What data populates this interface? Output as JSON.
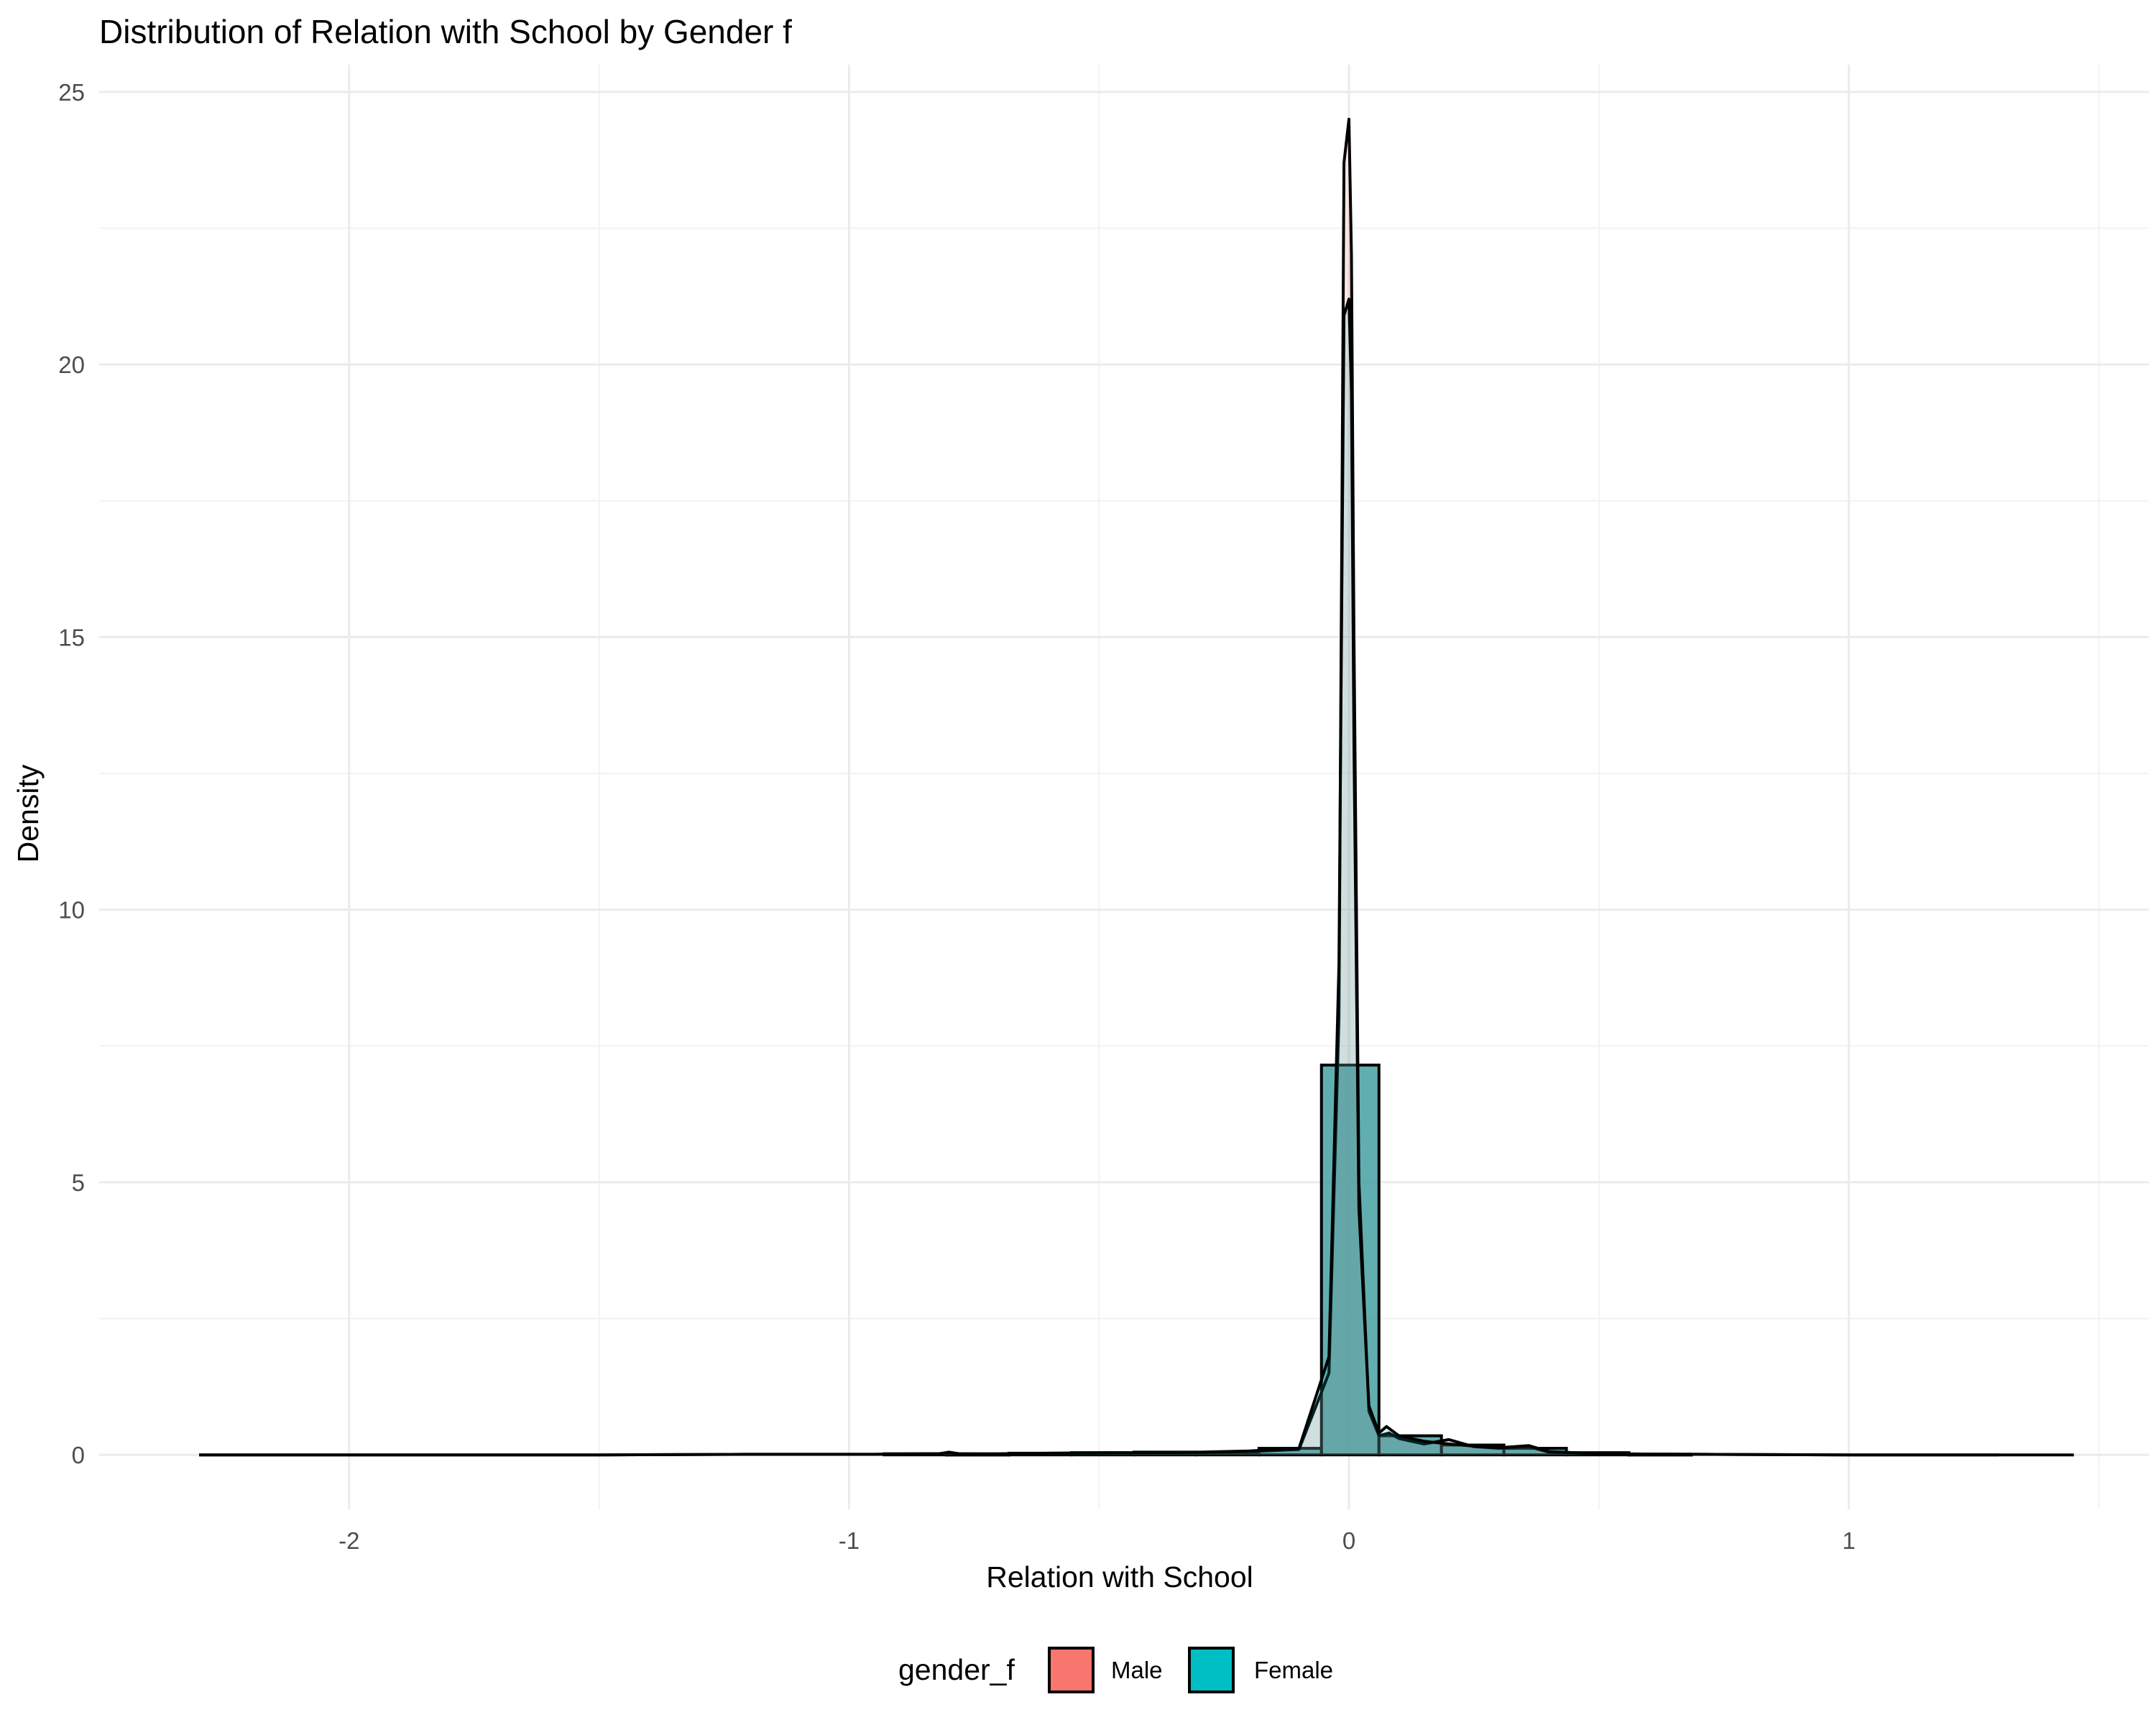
{
  "chart_data": {
    "type": "histogram+density",
    "title": "Distribution of Relation with School by Gender f",
    "xlabel": "Relation with School",
    "ylabel": "Density",
    "xlim": [
      -2.5,
      1.6
    ],
    "ylim": [
      -1,
      25.5
    ],
    "x_ticks": [
      -2,
      -1,
      0,
      1
    ],
    "y_ticks": [
      0,
      5,
      10,
      15,
      20,
      25
    ],
    "grid": true,
    "legend": {
      "title": "gender_f",
      "position": "bottom",
      "entries": [
        {
          "label": "Male",
          "color": "#F8766D"
        },
        {
          "label": "Female",
          "color": "#00BFC4"
        }
      ]
    },
    "bin_width": 0.125,
    "histogram_bins": [
      {
        "x0": -0.93,
        "x1": -0.805,
        "density": 0.02
      },
      {
        "x0": -0.805,
        "x1": -0.68,
        "density": 0.01
      },
      {
        "x0": -0.68,
        "x1": -0.555,
        "density": 0.03
      },
      {
        "x0": -0.555,
        "x1": -0.43,
        "density": 0.04
      },
      {
        "x0": -0.43,
        "x1": -0.305,
        "density": 0.05
      },
      {
        "x0": -0.305,
        "x1": -0.18,
        "density": 0.04
      },
      {
        "x0": -0.18,
        "x1": -0.055,
        "density": 0.12
      },
      {
        "x0": -0.055,
        "x1": 0.06,
        "density": 7.15
      },
      {
        "x0": 0.06,
        "x1": 0.185,
        "density": 0.35
      },
      {
        "x0": 0.185,
        "x1": 0.31,
        "density": 0.18
      },
      {
        "x0": 0.31,
        "x1": 0.435,
        "density": 0.12
      },
      {
        "x0": 0.435,
        "x1": 0.56,
        "density": 0.04
      },
      {
        "x0": 0.56,
        "x1": 0.685,
        "density": 0.01
      }
    ],
    "series": [
      {
        "name": "Male",
        "color": "#F8766D",
        "density_curve": {
          "x": [
            -2.3,
            -1.5,
            -1.2,
            -0.95,
            -0.82,
            -0.8,
            -0.78,
            -0.7,
            -0.6,
            -0.5,
            -0.4,
            -0.3,
            -0.2,
            -0.1,
            -0.04,
            -0.02,
            -0.01,
            0.0,
            0.005,
            0.01,
            0.02,
            0.04,
            0.06,
            0.08,
            0.1,
            0.15,
            0.2,
            0.25,
            0.3,
            0.36,
            0.4,
            0.5,
            0.7,
            1.0,
            1.3
          ],
          "y": [
            0.0,
            0.0,
            0.01,
            0.01,
            0.02,
            0.05,
            0.02,
            0.01,
            0.02,
            0.03,
            0.04,
            0.04,
            0.06,
            0.1,
            1.5,
            8.0,
            23.7,
            24.5,
            22.0,
            15.0,
            5.0,
            0.8,
            0.35,
            0.4,
            0.3,
            0.2,
            0.28,
            0.15,
            0.12,
            0.15,
            0.05,
            0.02,
            0.01,
            0.0,
            0.0
          ]
        }
      },
      {
        "name": "Female",
        "color": "#00BFC4",
        "density_curve": {
          "x": [
            -2.3,
            -1.5,
            -1.2,
            -0.95,
            -0.82,
            -0.8,
            -0.78,
            -0.7,
            -0.6,
            -0.5,
            -0.4,
            -0.3,
            -0.2,
            -0.1,
            -0.04,
            -0.02,
            -0.01,
            0.0,
            0.005,
            0.01,
            0.02,
            0.04,
            0.06,
            0.075,
            0.1,
            0.15,
            0.2,
            0.25,
            0.3,
            0.36,
            0.4,
            0.5,
            0.7,
            1.0,
            1.45
          ],
          "y": [
            0.0,
            0.0,
            0.01,
            0.01,
            0.02,
            0.04,
            0.02,
            0.02,
            0.03,
            0.04,
            0.04,
            0.05,
            0.07,
            0.12,
            1.8,
            9.0,
            20.9,
            21.2,
            19.5,
            13.0,
            4.5,
            0.9,
            0.4,
            0.52,
            0.35,
            0.25,
            0.2,
            0.16,
            0.13,
            0.17,
            0.06,
            0.02,
            0.01,
            0.0,
            0.0
          ]
        }
      }
    ]
  }
}
